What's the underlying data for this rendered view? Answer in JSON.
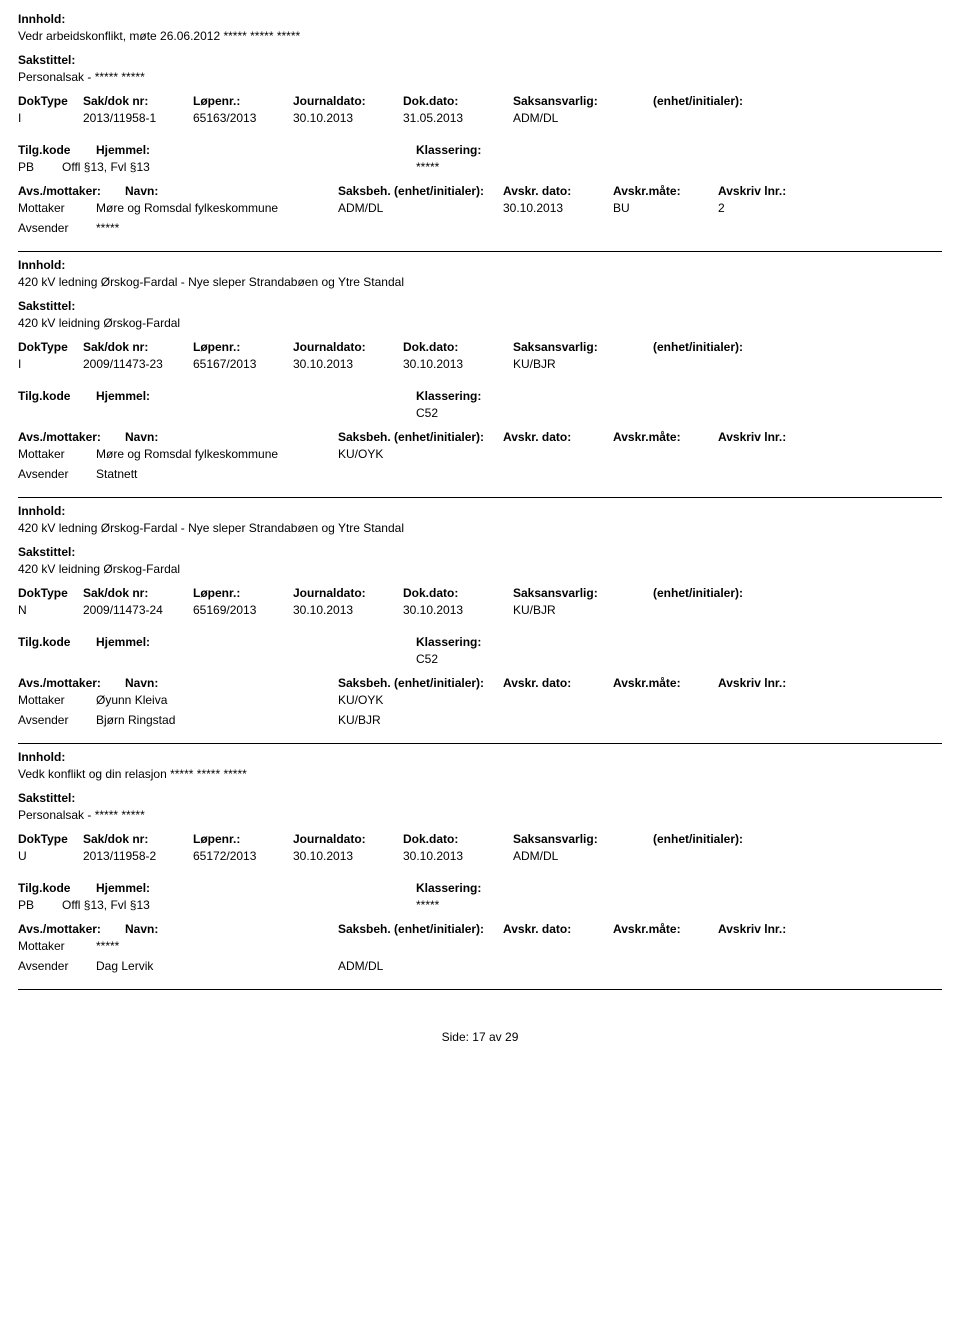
{
  "labels": {
    "innhold": "Innhold:",
    "sakstittel": "Sakstittel:",
    "doktype": "DokType",
    "saknr": "Sak/dok nr:",
    "lopenr": "Løpenr.:",
    "journaldato": "Journaldato:",
    "dokdato": "Dok.dato:",
    "saksansvarlig": "Saksansvarlig:",
    "enhet": "(enhet/initialer):",
    "tilgkode": "Tilg.kode",
    "hjemmel": "Hjemmel:",
    "klassering": "Klassering:",
    "avsmottaker": "Avs./mottaker:",
    "navn": "Navn:",
    "saksbeh": "Saksbeh.",
    "saksbeh_enhet": "(enhet/initialer):",
    "avskrdato": "Avskr. dato:",
    "avskrmate": "Avskr.måte:",
    "avskrlnr": "Avskriv lnr.:",
    "mottaker": "Mottaker",
    "avsender": "Avsender",
    "side": "Side:",
    "av": "av"
  },
  "page": {
    "current": "17",
    "total": "29"
  },
  "records": [
    {
      "innhold": "Vedr arbeidskonflikt, møte 26.06.2012 ***** ***** *****",
      "sakstittel": "Personalsak - ***** *****",
      "doktype": "I",
      "saknr": "2013/11958-1",
      "lopenr": "65163/2013",
      "journaldato": "30.10.2013",
      "dokdato": "31.05.2013",
      "saksansvarlig": "ADM/DL",
      "enhet": "",
      "tilgkode": "PB",
      "hjemmel": "Offl §13, Fvl §13",
      "klassering": "*****",
      "parties": [
        {
          "rolle": "Mottaker",
          "navn": "Møre og Romsdal fylkeskommune",
          "saksbeh": "ADM/DL",
          "adato": "30.10.2013",
          "amate": "BU",
          "alnr": "2"
        },
        {
          "rolle": "Avsender",
          "navn": "*****",
          "saksbeh": "",
          "adato": "",
          "amate": "",
          "alnr": ""
        }
      ]
    },
    {
      "innhold": "420 kV ledning Ørskog-Fardal - Nye sleper Strandabøen og Ytre Standal",
      "sakstittel": "420 kV leidning Ørskog-Fardal",
      "doktype": "I",
      "saknr": "2009/11473-23",
      "lopenr": "65167/2013",
      "journaldato": "30.10.2013",
      "dokdato": "30.10.2013",
      "saksansvarlig": "KU/BJR",
      "enhet": "",
      "tilgkode": "",
      "hjemmel": "",
      "klassering": "C52",
      "parties": [
        {
          "rolle": "Mottaker",
          "navn": "Møre og Romsdal fylkeskommune",
          "saksbeh": "KU/OYK",
          "adato": "",
          "amate": "",
          "alnr": ""
        },
        {
          "rolle": "Avsender",
          "navn": "Statnett",
          "saksbeh": "",
          "adato": "",
          "amate": "",
          "alnr": ""
        }
      ]
    },
    {
      "innhold": "420 kV ledning Ørskog-Fardal - Nye sleper Strandabøen og Ytre Standal",
      "sakstittel": "420 kV leidning Ørskog-Fardal",
      "doktype": "N",
      "saknr": "2009/11473-24",
      "lopenr": "65169/2013",
      "journaldato": "30.10.2013",
      "dokdato": "30.10.2013",
      "saksansvarlig": "KU/BJR",
      "enhet": "",
      "tilgkode": "",
      "hjemmel": "",
      "klassering": "C52",
      "parties": [
        {
          "rolle": "Mottaker",
          "navn": "Øyunn Kleiva",
          "saksbeh": "KU/OYK",
          "adato": "",
          "amate": "",
          "alnr": ""
        },
        {
          "rolle": "Avsender",
          "navn": "Bjørn Ringstad",
          "saksbeh": "KU/BJR",
          "adato": "",
          "amate": "",
          "alnr": ""
        }
      ]
    },
    {
      "innhold": "Vedk konflikt og din relasjon ***** ***** *****",
      "sakstittel": "Personalsak - ***** *****",
      "doktype": "U",
      "saknr": "2013/11958-2",
      "lopenr": "65172/2013",
      "journaldato": "30.10.2013",
      "dokdato": "30.10.2013",
      "saksansvarlig": "ADM/DL",
      "enhet": "",
      "tilgkode": "PB",
      "hjemmel": "Offl §13, Fvl §13",
      "klassering": "*****",
      "parties": [
        {
          "rolle": "Mottaker",
          "navn": "*****",
          "saksbeh": "",
          "adato": "",
          "amate": "",
          "alnr": ""
        },
        {
          "rolle": "Avsender",
          "navn": "Dag Lervik",
          "saksbeh": "ADM/DL",
          "adato": "",
          "amate": "",
          "alnr": ""
        }
      ]
    }
  ]
}
